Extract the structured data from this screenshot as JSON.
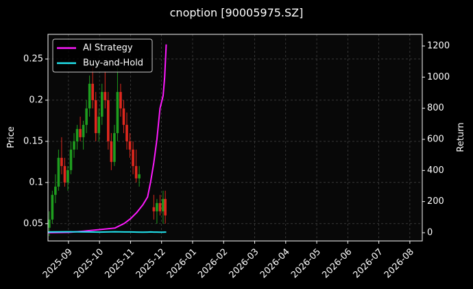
{
  "chart_data": {
    "type": "candlestick",
    "title": "cnoption [90005975.SZ]",
    "y_label": "Price",
    "y2_label": "Return",
    "xlim": [
      -0.66,
      11.4
    ],
    "xticks": [
      {
        "value": 0,
        "label": "2025-09"
      },
      {
        "value": 1,
        "label": "2025-10"
      },
      {
        "value": 2,
        "label": "2025-11"
      },
      {
        "value": 3,
        "label": "2025-12"
      },
      {
        "value": 4,
        "label": "2026-01"
      },
      {
        "value": 5,
        "label": "2026-02"
      },
      {
        "value": 6,
        "label": "2026-03"
      },
      {
        "value": 7,
        "label": "2026-04"
      },
      {
        "value": 8,
        "label": "2026-05"
      },
      {
        "value": 9,
        "label": "2026-06"
      },
      {
        "value": 10,
        "label": "2026-07"
      },
      {
        "value": 11,
        "label": "2026-08"
      }
    ],
    "ylim": [
      0.029,
      0.28
    ],
    "yticks": [
      0.05,
      0.1,
      0.15,
      0.2,
      0.25
    ],
    "y2lim": [
      -53,
      1275
    ],
    "y2ticks": [
      0,
      200,
      400,
      600,
      800,
      1000,
      1200
    ],
    "grid": true,
    "legend": "upper left",
    "up_color": "#1f9e1f",
    "down_color": "#e0281e",
    "x": [
      -0.62,
      -0.52,
      -0.42,
      -0.32,
      -0.22,
      -0.12,
      -0.02,
      0.08,
      0.18,
      0.28,
      0.38,
      0.48,
      0.58,
      0.68,
      0.78,
      0.88,
      0.98,
      1.08,
      1.18,
      1.28,
      1.38,
      1.48,
      1.58,
      1.68,
      1.78,
      1.88,
      1.98,
      2.08,
      2.18,
      2.28,
      2.75,
      2.85,
      2.95,
      3.05,
      3.12
    ],
    "open": [
      0.045,
      0.055,
      0.085,
      0.095,
      0.13,
      0.12,
      0.1,
      0.115,
      0.14,
      0.15,
      0.165,
      0.155,
      0.17,
      0.19,
      0.22,
      0.2,
      0.16,
      0.18,
      0.21,
      0.2,
      0.15,
      0.125,
      0.16,
      0.21,
      0.19,
      0.17,
      0.15,
      0.14,
      0.12,
      0.105,
      0.07,
      0.065,
      0.075,
      0.065,
      0.08
    ],
    "high": [
      0.065,
      0.09,
      0.11,
      0.14,
      0.155,
      0.13,
      0.12,
      0.15,
      0.16,
      0.17,
      0.18,
      0.175,
      0.2,
      0.23,
      0.24,
      0.21,
      0.19,
      0.22,
      0.235,
      0.21,
      0.16,
      0.17,
      0.24,
      0.22,
      0.2,
      0.185,
      0.16,
      0.15,
      0.14,
      0.12,
      0.085,
      0.08,
      0.085,
      0.09,
      0.09
    ],
    "low": [
      0.035,
      0.05,
      0.075,
      0.09,
      0.11,
      0.095,
      0.09,
      0.11,
      0.13,
      0.14,
      0.15,
      0.14,
      0.16,
      0.18,
      0.19,
      0.15,
      0.15,
      0.17,
      0.19,
      0.14,
      0.115,
      0.12,
      0.15,
      0.18,
      0.16,
      0.14,
      0.13,
      0.11,
      0.1,
      0.095,
      0.055,
      0.05,
      0.06,
      0.05,
      0.05
    ],
    "close": [
      0.055,
      0.085,
      0.095,
      0.13,
      0.12,
      0.1,
      0.115,
      0.14,
      0.15,
      0.165,
      0.155,
      0.17,
      0.19,
      0.22,
      0.2,
      0.16,
      0.18,
      0.21,
      0.2,
      0.15,
      0.125,
      0.16,
      0.21,
      0.19,
      0.17,
      0.15,
      0.14,
      0.12,
      0.105,
      0.11,
      0.065,
      0.075,
      0.065,
      0.08,
      0.06
    ],
    "series": [
      {
        "name": "AI Strategy",
        "color": "#ff1aff",
        "axis": "y2",
        "x": [
          -0.65,
          0,
          0.5,
          1,
          1.5,
          1.8,
          2,
          2.2,
          2.4,
          2.55,
          2.65,
          2.75,
          2.85,
          2.95,
          3.05,
          3.1,
          3.15
        ],
        "values": [
          0,
          2,
          10,
          20,
          30,
          60,
          90,
          130,
          180,
          230,
          330,
          450,
          600,
          800,
          880,
          1000,
          1210
        ]
      },
      {
        "name": "Buy-and-Hold",
        "color": "#22e5f0",
        "axis": "y2",
        "x": [
          -0.65,
          0,
          0.5,
          1,
          1.5,
          1.8,
          2,
          2.2,
          2.4,
          2.55,
          2.65,
          2.75,
          2.85,
          2.95,
          3.05,
          3.1,
          3.15
        ],
        "values": [
          5,
          6,
          5,
          4,
          6,
          5,
          5,
          4,
          3,
          4,
          5,
          4,
          4,
          3,
          3,
          4,
          4
        ]
      }
    ]
  }
}
